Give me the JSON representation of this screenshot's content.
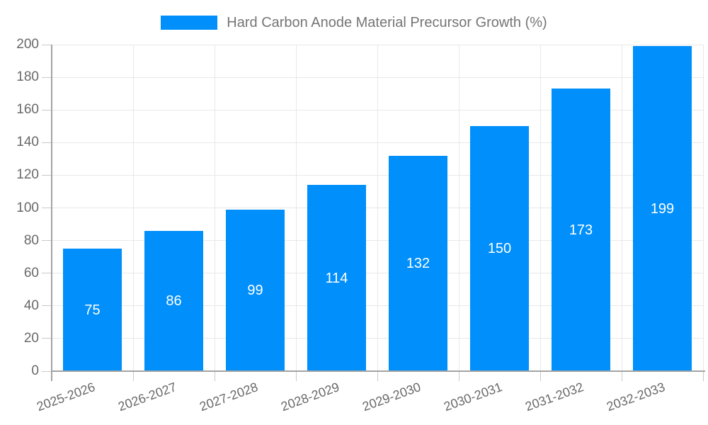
{
  "legend": {
    "label": "Hard Carbon Anode Material Precursor Growth (%)"
  },
  "chart_data": {
    "type": "bar",
    "title": "Hard Carbon Anode Material Precursor Growth (%)",
    "categories": [
      "2025-2026",
      "2026-2027",
      "2027-2028",
      "2028-2029",
      "2029-2030",
      "2030-2031",
      "2031-2032",
      "2032-2033"
    ],
    "values": [
      75,
      86,
      99,
      114,
      132,
      150,
      173,
      199
    ],
    "xlabel": "",
    "ylabel": "",
    "ylim": [
      0,
      200
    ],
    "ytick_step": 20,
    "ytick_labels": [
      "0",
      "20",
      "40",
      "60",
      "80",
      "100",
      "120",
      "140",
      "160",
      "180",
      "200"
    ],
    "grid": "on",
    "legend_position": "top-center",
    "value_labels_shown": true,
    "value_label_position": "center-of-bar",
    "x_label_rotation_deg": -20,
    "colors": {
      "bar": "#008FFB",
      "value_label": "#FFFFFF",
      "axis_label": "#696969",
      "title_text": "#757575",
      "gridline": "#E8E8E8",
      "tick": "#C9C9C9",
      "axis_line": "#A3A3A3",
      "background": "#FFFFFF"
    }
  }
}
